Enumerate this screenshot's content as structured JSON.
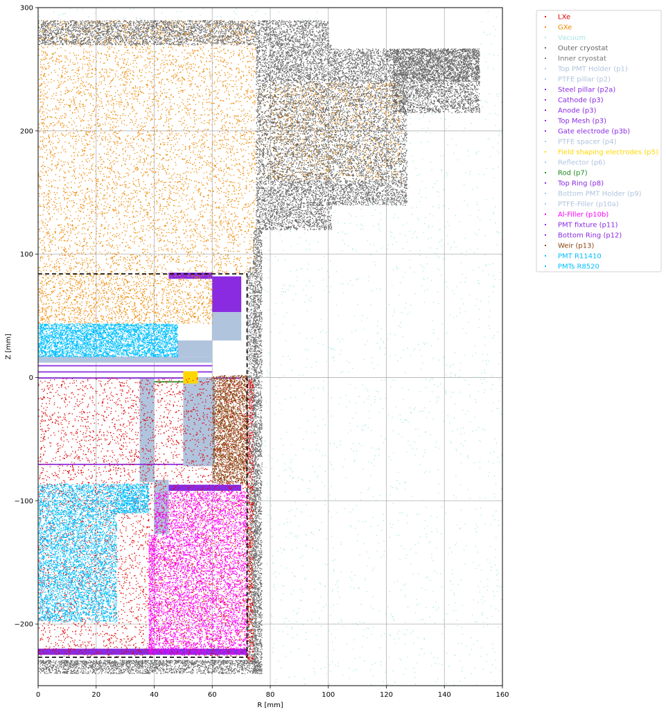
{
  "chart_data": {
    "type": "scatter",
    "xlabel": "R [mm]",
    "ylabel": "Z [mm]",
    "xlim": [
      0,
      160
    ],
    "ylim": [
      -250,
      300
    ],
    "x_ticks": [
      0,
      20,
      40,
      60,
      80,
      100,
      120,
      140,
      160
    ],
    "y_ticks": [
      -200,
      -100,
      0,
      100,
      200,
      300
    ],
    "x_tick_labels": [
      "0",
      "20",
      "40",
      "60",
      "80",
      "100",
      "120",
      "140",
      "160"
    ],
    "y_tick_labels": [
      "−200",
      "−100",
      "0",
      "100",
      "200",
      "300"
    ],
    "grid": true,
    "legend_position": "outside-right",
    "boundary": {
      "style": "dashed",
      "color": "#000000",
      "points": [
        [
          0,
          84
        ],
        [
          72,
          84
        ],
        [
          72,
          -227
        ],
        [
          0,
          -227
        ]
      ]
    },
    "series": [
      {
        "name": "LXe",
        "color": "#e00000",
        "marker": "dot",
        "regions": [
          {
            "kind": "points",
            "density": 0.9,
            "rects": [
              [
                0,
                -227,
                72,
                0
              ]
            ]
          },
          {
            "kind": "points",
            "density": 1.8,
            "rects": [
              [
                72,
                -230,
                74,
                0
              ]
            ]
          }
        ]
      },
      {
        "name": "GXe",
        "color": "#ee8800",
        "marker": "dot",
        "regions": [
          {
            "kind": "points",
            "density": 0.5,
            "rects": [
              [
                0,
                84,
                75,
                290
              ],
              [
                75,
                160,
                125,
                240
              ]
            ]
          },
          {
            "kind": "points",
            "density": 0.9,
            "rects": [
              [
                0,
                44,
                60,
                84
              ]
            ]
          }
        ]
      },
      {
        "name": "Vacuum",
        "color": "#a8e6e6",
        "marker": "dot",
        "regions": [
          {
            "kind": "points",
            "density": 0.06,
            "rects": [
              [
                78,
                -250,
                160,
                120
              ],
              [
                100,
                120,
                160,
                215
              ],
              [
                152,
                215,
                160,
                300
              ],
              [
                0,
                290,
                100,
                300
              ]
            ]
          }
        ]
      },
      {
        "name": "Outer cryostat",
        "color": "#666666",
        "marker": "dot",
        "regions": [
          {
            "kind": "points",
            "density": 2.4,
            "rects": [
              [
                75,
                120,
                101,
                160
              ],
              [
                75,
                160,
                127,
                240
              ],
              [
                101,
                140,
                127,
                160
              ],
              [
                122,
                215,
                152,
                267
              ],
              [
                101,
                240,
                152,
                267
              ],
              [
                75,
                240,
                101,
                270
              ],
              [
                0,
                270,
                100,
                290
              ]
            ]
          },
          {
            "kind": "points",
            "density": 2.8,
            "rects": [
              [
                74,
                -240,
                77,
                120
              ],
              [
                0,
                -240,
                77,
                -229
              ]
            ]
          }
        ]
      },
      {
        "name": "Inner cryostat",
        "color": "#777777",
        "marker": "dot",
        "regions": [
          {
            "kind": "points",
            "density": 2.5,
            "rects": [
              [
                72,
                -232,
                75,
                90
              ],
              [
                0,
                -232,
                74,
                -229
              ]
            ]
          }
        ]
      },
      {
        "name": "Top PMT Holder (p1)",
        "color": "#b0c4de",
        "marker": "dot",
        "regions": [
          {
            "kind": "solid",
            "rects": [
              [
                0,
                12,
                60,
                17
              ],
              [
                48,
                17,
                60,
                30
              ]
            ]
          }
        ]
      },
      {
        "name": "PTFE pillar (p2)",
        "color": "#b0c4de",
        "marker": "dot",
        "regions": [
          {
            "kind": "solid",
            "rects": [
              [
                35,
                -85,
                40,
                0
              ]
            ]
          }
        ]
      },
      {
        "name": "Steel pillar (p2a)",
        "color": "#8a2be2",
        "marker": "dot",
        "regions": [
          {
            "kind": "solid",
            "rects": [
              [
                60,
                53,
                70,
                82
              ]
            ]
          }
        ]
      },
      {
        "name": "Cathode (p3)",
        "color": "#8a2be2",
        "marker": "dot",
        "regions": [
          {
            "kind": "solid",
            "rects": [
              [
                0,
                -71,
                50,
                -70
              ]
            ]
          }
        ]
      },
      {
        "name": "Anode (p3)",
        "color": "#8a2be2",
        "marker": "dot",
        "regions": [
          {
            "kind": "solid",
            "rects": [
              [
                0,
                9,
                60,
                10
              ]
            ]
          }
        ]
      },
      {
        "name": "Top Mesh (p3)",
        "color": "#8a2be2",
        "marker": "dot",
        "regions": [
          {
            "kind": "solid",
            "rects": [
              [
                0,
                4,
                60,
                5
              ]
            ]
          }
        ]
      },
      {
        "name": "Gate electrode (p3b)",
        "color": "#8a2be2",
        "marker": "dot",
        "regions": [
          {
            "kind": "solid",
            "rects": [
              [
                0,
                -1,
                70,
                0
              ]
            ]
          }
        ]
      },
      {
        "name": "PTFE spacer (p4)",
        "color": "#b0c4de",
        "marker": "dot",
        "regions": [
          {
            "kind": "solid",
            "rects": [
              [
                50,
                -72,
                60,
                0
              ]
            ]
          }
        ]
      },
      {
        "name": "Field shaping electrodes (p5)",
        "color": "#ffd700",
        "marker": "dot",
        "regions": [
          {
            "kind": "solid",
            "rects": [
              [
                50,
                -5,
                55,
                5
              ]
            ]
          }
        ]
      },
      {
        "name": "Reflector (p6)",
        "color": "#b0c4de",
        "marker": "dot",
        "regions": [
          {
            "kind": "solid",
            "rects": [
              [
                60,
                -70,
                61,
                0
              ]
            ]
          }
        ]
      },
      {
        "name": "Rod (p7)",
        "color": "#228b22",
        "marker": "dot",
        "regions": [
          {
            "kind": "solid",
            "rects": [
              [
                40,
                -4,
                50,
                -3
              ]
            ]
          }
        ]
      },
      {
        "name": "Top Ring (p8)",
        "color": "#8a2be2",
        "marker": "dot",
        "regions": [
          {
            "kind": "solid",
            "rects": [
              [
                45,
                80,
                60,
                85
              ]
            ]
          }
        ]
      },
      {
        "name": "Bottom PMT Holder (p9)",
        "color": "#b0c4de",
        "marker": "dot",
        "regions": [
          {
            "kind": "solid",
            "rects": [
              [
                40,
                -127,
                45,
                -83
              ]
            ]
          }
        ]
      },
      {
        "name": "PTFE-Filler (p10a)",
        "color": "#b0c4de",
        "marker": "dot",
        "regions": [
          {
            "kind": "solid",
            "rects": [
              [
                60,
                30,
                70,
                53
              ]
            ]
          }
        ]
      },
      {
        "name": "Al-Filler (p10b)",
        "color": "#ff00ff",
        "marker": "dot",
        "regions": [
          {
            "kind": "points",
            "density": 3.6,
            "rects": [
              [
                40,
                -225,
                72,
                -92
              ],
              [
                38,
                -225,
                40,
                -127
              ]
            ]
          }
        ]
      },
      {
        "name": "PMT fixture (p11)",
        "color": "#8a2be2",
        "marker": "dot",
        "regions": [
          {
            "kind": "solid",
            "rects": [
              [
                45,
                -92,
                70,
                -87
              ]
            ]
          }
        ]
      },
      {
        "name": "Bottom Ring (p12)",
        "color": "#8a2be2",
        "marker": "dot",
        "regions": [
          {
            "kind": "solid",
            "rects": [
              [
                0,
                -225,
                72,
                -220
              ]
            ]
          }
        ]
      },
      {
        "name": "Weir (p13)",
        "color": "#8b4513",
        "marker": "dot",
        "regions": [
          {
            "kind": "points",
            "density": 3.2,
            "rects": [
              [
                60,
                -86,
                72,
                2
              ]
            ]
          }
        ]
      },
      {
        "name": "PMT R11410",
        "color": "#00bfff",
        "marker": "dot",
        "regions": [
          {
            "kind": "points",
            "density": 4.2,
            "rects": [
              [
                0,
                -198,
                27,
                -86
              ],
              [
                27,
                -110,
                38,
                -86
              ]
            ]
          }
        ]
      },
      {
        "name": "PMTs R8520",
        "color": "#00bfff",
        "marker": "dot",
        "regions": [
          {
            "kind": "points",
            "density": 4.2,
            "rects": [
              [
                0,
                17,
                48,
                44
              ]
            ]
          }
        ]
      }
    ]
  }
}
